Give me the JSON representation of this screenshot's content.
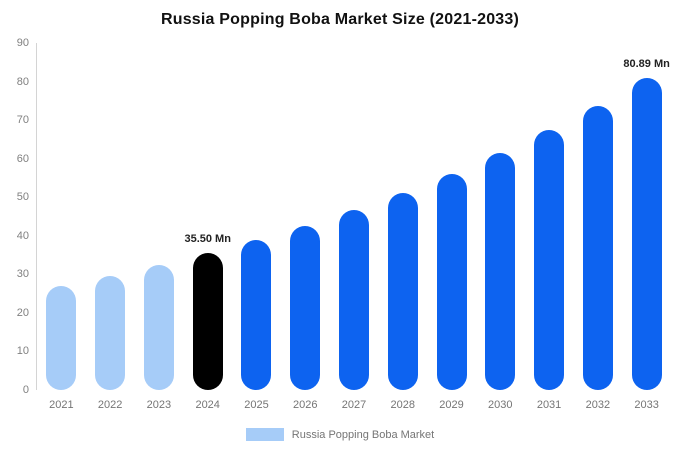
{
  "title": "Russia Popping Boba Market Size (2021-2033)",
  "chart_data": {
    "type": "bar",
    "title": "Russia Popping Boba Market Size (2021-2033)",
    "categories": [
      "2021",
      "2022",
      "2023",
      "2024",
      "2025",
      "2026",
      "2027",
      "2028",
      "2029",
      "2030",
      "2031",
      "2032",
      "2033"
    ],
    "values": [
      26.98,
      29.57,
      32.4,
      35.5,
      38.9,
      42.63,
      46.71,
      51.18,
      56.09,
      61.46,
      67.35,
      73.79,
      80.89
    ],
    "unit": "Mn",
    "ylim": [
      0,
      90
    ],
    "yticks": [
      0,
      10,
      20,
      30,
      40,
      50,
      60,
      70,
      80,
      90
    ],
    "grid": false,
    "bar_colors": [
      "#a6ccf8",
      "#a6ccf8",
      "#a6ccf8",
      "#000000",
      "#0d63f0",
      "#0d63f0",
      "#0d63f0",
      "#0d63f0",
      "#0d63f0",
      "#0d63f0",
      "#0d63f0",
      "#0d63f0",
      "#0d63f0"
    ],
    "annotations": [
      {
        "category": "2024",
        "text": "35.50 Mn"
      },
      {
        "category": "2033",
        "text": "80.89 Mn"
      }
    ],
    "legend": {
      "label": "Russia Popping Boba Market",
      "swatch_color": "#a6ccf8",
      "position": "bottom"
    },
    "colors": {
      "light_blue": "#a6ccf8",
      "primary_blue": "#0d63f0",
      "highlight_black": "#000000"
    }
  }
}
